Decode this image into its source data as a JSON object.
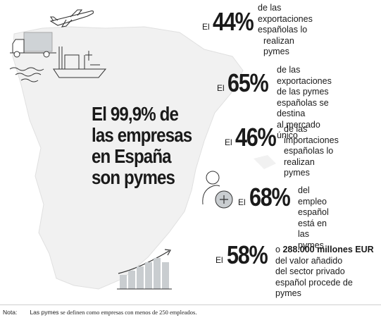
{
  "headline": [
    "El 99,9% de",
    "las empresas",
    "en España",
    "son pymes"
  ],
  "stats": [
    {
      "el": "El",
      "pct": "44%",
      "desc": [
        "de las",
        "exportaciones",
        "españolas lo",
        "realizan pymes"
      ]
    },
    {
      "el": "El",
      "pct": "65%",
      "desc": [
        "de las exportaciones",
        "de las pymes",
        "españolas se destina",
        "al mercado único"
      ]
    },
    {
      "el": "El",
      "pct": "46%",
      "desc": [
        "de las",
        "importaciones",
        "españolas lo",
        "realizan pymes"
      ]
    },
    {
      "el": "El",
      "pct": "68%",
      "desc": [
        "del empleo",
        "español está en",
        "las pymes"
      ]
    },
    {
      "el": "El",
      "pct": "58%",
      "desc_bold": "288.000 millones EUR",
      "desc_pre": "o",
      "desc": [
        "del valor añadido",
        "del sector privado",
        "español procede de",
        "pymes"
      ]
    }
  ],
  "note": {
    "label": "Nota:",
    "bold": "Las pymes",
    "text": "se definen como empresas con menos de 250 empleados."
  },
  "icons": [
    "airplane-icon",
    "truck-icon",
    "ship-icon",
    "person-plus-icon",
    "growth-chart-icon"
  ]
}
